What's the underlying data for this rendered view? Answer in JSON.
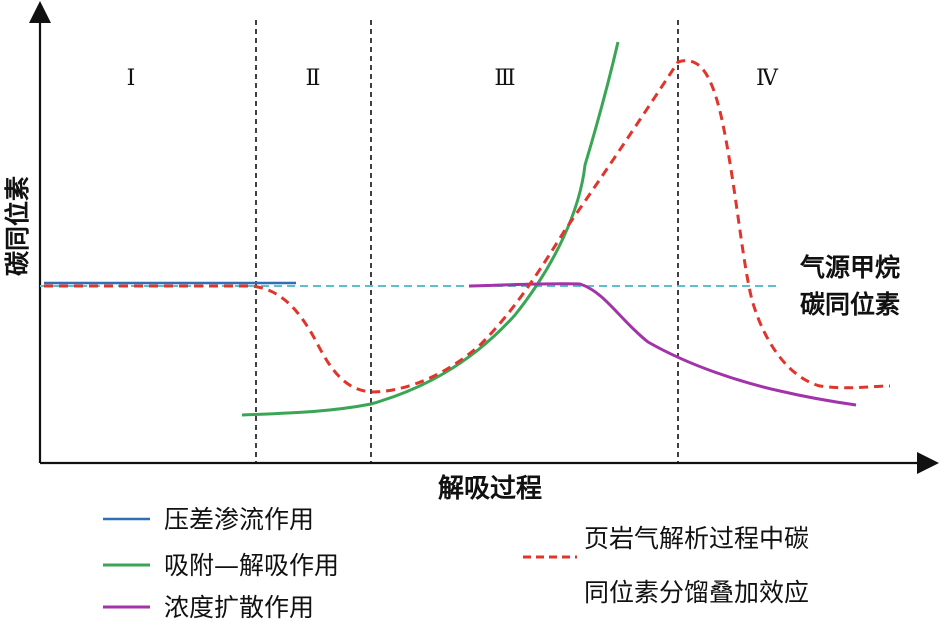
{
  "chart_data": {
    "type": "line",
    "title": "",
    "xlabel": "解吸过程",
    "ylabel": "碳同位素",
    "stages": [
      "Ⅰ",
      "Ⅱ",
      "Ⅲ",
      "Ⅳ"
    ],
    "reference_line": {
      "label_line1": "气源甲烷",
      "label_line2": "碳同位素",
      "color": "#5bc0c8"
    },
    "series": [
      {
        "name": "压差渗流作用",
        "color": "#2f6fb5",
        "style": "solid"
      },
      {
        "name": "吸附—解吸作用",
        "color": "#3aa655",
        "style": "solid"
      },
      {
        "name": "浓度扩散作用",
        "color": "#a233a8",
        "style": "solid"
      },
      {
        "name": "页岩气解析过程中碳同位素分馏叠加效应",
        "name_line1": "页岩气解析过程中碳",
        "name_line2": "同位素分馏叠加效应",
        "color": "#e0352b",
        "style": "dashed"
      }
    ]
  }
}
